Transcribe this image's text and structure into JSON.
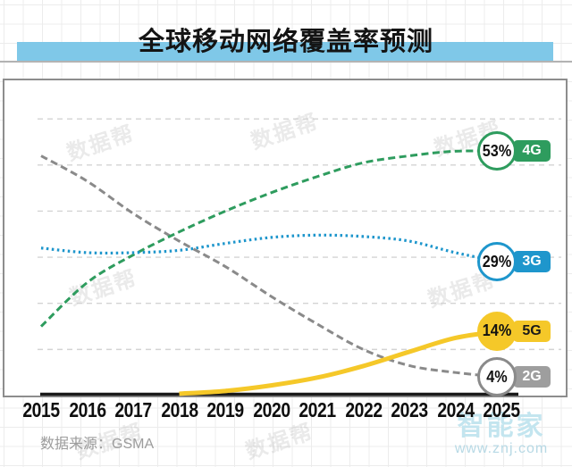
{
  "title": "全球移动网络覆盖率预测",
  "source_label": "数据来源：GSMA",
  "watermark": {
    "stamp": "数据帮",
    "brand": "智能家",
    "url": "www.znj.com"
  },
  "colors": {
    "title_highlight": "#7fc8e8",
    "g4": "#2e9c5e",
    "g3": "#1e96cc",
    "g5": "#f5c829",
    "g2": "#8a8a8a",
    "axis": "#1a1a1a",
    "gridline": "#d3d3d3"
  },
  "chart_data": {
    "type": "line",
    "title": "全球移动网络覆盖率预测",
    "categories": [
      "2015",
      "2016",
      "2017",
      "2018",
      "2019",
      "2020",
      "2021",
      "2022",
      "2023",
      "2024",
      "2025"
    ],
    "unit": "%",
    "ylim": [
      0,
      62
    ],
    "gridlines": [
      10,
      20,
      30,
      40,
      50,
      60
    ],
    "grid": "horizontal-dashed",
    "legend_position": "right-end-labels",
    "series": [
      {
        "name": "4G",
        "end_label": "53%",
        "end_value": 53,
        "color": "#2e9c5e",
        "badge_color": "#2e9c5e",
        "badge_text_color": "#ffffff",
        "line_style": "dashed",
        "line_width": 3,
        "circle_filled": false,
        "z": 2,
        "values": [
          15,
          24.5,
          30.5,
          35.5,
          40,
          44,
          47.5,
          50.5,
          52,
          53,
          53
        ]
      },
      {
        "name": "3G",
        "end_label": "29%",
        "end_value": 29,
        "color": "#1e96cc",
        "badge_color": "#1e96cc",
        "badge_text_color": "#ffffff",
        "line_style": "dotted",
        "line_width": 3.2,
        "circle_filled": false,
        "z": 3,
        "values": [
          32,
          31,
          31,
          31.5,
          33,
          34.3,
          34.8,
          34.5,
          33.5,
          31,
          29
        ]
      },
      {
        "name": "5G",
        "end_label": "14%",
        "end_value": 14,
        "color": "#f5c829",
        "badge_color": "#f5c829",
        "badge_text_color": "#1a1a1a",
        "line_style": "solid",
        "line_width": 5,
        "circle_filled": true,
        "z": 4,
        "values": [
          null,
          null,
          null,
          0.4,
          1,
          2.2,
          3.9,
          6.4,
          9.5,
          12.5,
          14
        ]
      },
      {
        "name": "2G",
        "end_label": "4%",
        "end_value": 4,
        "color": "#8a8a8a",
        "badge_color": "#9e9e9e",
        "badge_text_color": "#ffffff",
        "line_style": "dashed",
        "line_width": 3,
        "circle_filled": false,
        "z": 1,
        "values": [
          52,
          46.5,
          39.5,
          33.5,
          28,
          21.5,
          15.5,
          10,
          6.5,
          5,
          4
        ]
      }
    ]
  }
}
